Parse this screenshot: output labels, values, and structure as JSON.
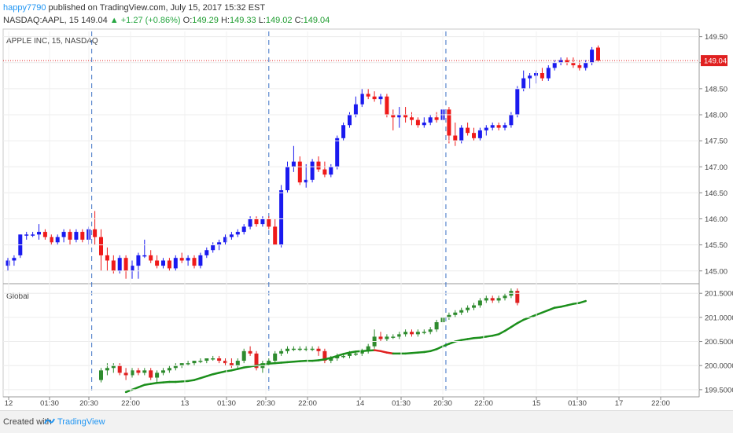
{
  "header": {
    "user": "happy7790",
    "published": "published on TradingView.com, July 15, 2017 15:32 EST",
    "symbol": "NASDAQ:AAPL, 15",
    "last": "149.04",
    "change": "+1.27 (+0.86%)",
    "o_label": "O:",
    "o_value": "149.29",
    "h_label": "H:",
    "h_value": "149.33",
    "l_label": "L:",
    "l_value": "149.02",
    "c_label": "C:",
    "c_value": "149.04"
  },
  "footer": {
    "created_with": "Created with",
    "brand": "TradingView"
  },
  "colors": {
    "up_candle": "#1a1aef",
    "down_candle": "#ef1a1a",
    "ind_up": "#2e8b2e",
    "ind_down": "#e02020",
    "ind_line": "#1b8f1b",
    "price_line": "#e02020",
    "session_line": "#3a6fc4"
  },
  "chart_data": [
    {
      "type": "candlestick",
      "pane_label": "APPLE INC, 15, NASDAQ",
      "ylim": [
        144.8,
        149.6
      ],
      "y_ticks": [
        "149.50",
        "149.00",
        "148.50",
        "148.00",
        "147.50",
        "147.00",
        "146.50",
        "146.00",
        "145.50",
        "145.00"
      ],
      "last_price_label": "149.04",
      "last_price": 149.04,
      "x_labels": [
        "12",
        "01:30",
        "20:30",
        "22:00",
        "13",
        "01:30",
        "20:30",
        "22:00",
        "14",
        "01:30",
        "20:30",
        "22:00",
        "15",
        "01:30",
        "17",
        "22:00"
      ],
      "session_breaks": [
        "20:30",
        "20:30",
        "20:30"
      ],
      "candles": [
        [
          145.1,
          145.25,
          145.0,
          145.2
        ],
        [
          145.2,
          145.3,
          145.1,
          145.25
        ],
        [
          145.3,
          145.7,
          145.25,
          145.7
        ],
        [
          145.7,
          145.75,
          145.6,
          145.7
        ],
        [
          145.7,
          145.75,
          145.65,
          145.7
        ],
        [
          145.7,
          145.9,
          145.6,
          145.75
        ],
        [
          145.75,
          145.8,
          145.6,
          145.65
        ],
        [
          145.65,
          145.7,
          145.5,
          145.55
        ],
        [
          145.55,
          145.7,
          145.5,
          145.65
        ],
        [
          145.65,
          145.8,
          145.55,
          145.75
        ],
        [
          145.75,
          145.8,
          145.5,
          145.6
        ],
        [
          145.6,
          145.8,
          145.55,
          145.75
        ],
        [
          145.75,
          145.8,
          145.55,
          145.6
        ],
        [
          145.6,
          145.85,
          145.5,
          145.8
        ],
        [
          145.8,
          146.15,
          145.5,
          145.65
        ],
        [
          145.65,
          145.8,
          145.0,
          145.3
        ],
        [
          145.3,
          145.45,
          145.0,
          145.2
        ],
        [
          145.2,
          145.3,
          144.95,
          145.0
        ],
        [
          145.0,
          145.3,
          144.95,
          145.25
        ],
        [
          145.25,
          145.3,
          144.85,
          145.0
        ],
        [
          145.0,
          145.2,
          144.85,
          145.1
        ],
        [
          145.1,
          145.35,
          144.85,
          145.3
        ],
        [
          145.3,
          145.6,
          145.25,
          145.3
        ],
        [
          145.3,
          145.4,
          145.15,
          145.2
        ],
        [
          145.2,
          145.3,
          145.05,
          145.1
        ],
        [
          145.1,
          145.25,
          145.05,
          145.2
        ],
        [
          145.2,
          145.25,
          145.0,
          145.05
        ],
        [
          145.05,
          145.3,
          145.0,
          145.25
        ],
        [
          145.25,
          145.35,
          145.15,
          145.2
        ],
        [
          145.2,
          145.3,
          145.1,
          145.25
        ],
        [
          145.25,
          145.3,
          145.05,
          145.1
        ],
        [
          145.1,
          145.35,
          145.05,
          145.3
        ],
        [
          145.3,
          145.45,
          145.25,
          145.4
        ],
        [
          145.4,
          145.55,
          145.35,
          145.5
        ],
        [
          145.5,
          145.6,
          145.4,
          145.55
        ],
        [
          145.55,
          145.7,
          145.5,
          145.65
        ],
        [
          145.65,
          145.75,
          145.6,
          145.7
        ],
        [
          145.7,
          145.8,
          145.65,
          145.75
        ],
        [
          145.75,
          145.9,
          145.7,
          145.85
        ],
        [
          145.85,
          146.05,
          145.8,
          146.0
        ],
        [
          146.0,
          146.05,
          145.85,
          145.9
        ],
        [
          145.9,
          146.05,
          145.85,
          146.0
        ],
        [
          146.0,
          146.05,
          145.8,
          145.85
        ],
        [
          145.85,
          146.0,
          145.5,
          145.5
        ],
        [
          145.5,
          146.65,
          145.45,
          146.55
        ],
        [
          146.55,
          147.1,
          146.5,
          147.0
        ],
        [
          147.0,
          147.4,
          146.9,
          147.1
        ],
        [
          147.1,
          147.2,
          146.65,
          146.7
        ],
        [
          146.7,
          147.05,
          146.6,
          146.75
        ],
        [
          146.75,
          147.15,
          146.7,
          147.1
        ],
        [
          147.1,
          147.2,
          146.9,
          146.95
        ],
        [
          146.95,
          147.1,
          146.8,
          146.85
        ],
        [
          146.85,
          147.05,
          146.8,
          147.0
        ],
        [
          147.0,
          147.6,
          146.95,
          147.55
        ],
        [
          147.55,
          147.85,
          147.5,
          147.8
        ],
        [
          147.8,
          148.05,
          147.75,
          148.0
        ],
        [
          148.0,
          148.35,
          147.95,
          148.2
        ],
        [
          148.2,
          148.5,
          148.15,
          148.4
        ],
        [
          148.4,
          148.5,
          148.3,
          148.35
        ],
        [
          148.35,
          148.45,
          148.25,
          148.3
        ],
        [
          148.3,
          148.4,
          148.2,
          148.35
        ],
        [
          148.35,
          148.4,
          147.95,
          148.0
        ],
        [
          148.0,
          148.1,
          147.7,
          147.95
        ],
        [
          147.95,
          148.15,
          147.75,
          148.0
        ],
        [
          148.0,
          148.15,
          147.85,
          147.95
        ],
        [
          147.95,
          148.05,
          147.8,
          147.9
        ],
        [
          147.9,
          147.95,
          147.75,
          147.8
        ],
        [
          147.8,
          147.95,
          147.75,
          147.85
        ],
        [
          147.85,
          148.0,
          147.8,
          147.95
        ],
        [
          147.95,
          148.05,
          147.85,
          147.9
        ],
        [
          147.9,
          148.15,
          147.8,
          148.1
        ],
        [
          148.1,
          148.15,
          147.45,
          147.6
        ],
        [
          147.6,
          147.85,
          147.4,
          147.5
        ],
        [
          147.5,
          147.8,
          147.45,
          147.75
        ],
        [
          147.75,
          147.85,
          147.6,
          147.65
        ],
        [
          147.65,
          147.75,
          147.5,
          147.55
        ],
        [
          147.55,
          147.75,
          147.5,
          147.7
        ],
        [
          147.7,
          147.8,
          147.6,
          147.75
        ],
        [
          147.75,
          147.85,
          147.7,
          147.8
        ],
        [
          147.8,
          147.85,
          147.7,
          147.75
        ],
        [
          147.75,
          147.85,
          147.7,
          147.8
        ],
        [
          147.8,
          148.05,
          147.75,
          148.0
        ],
        [
          148.0,
          148.55,
          147.95,
          148.5
        ],
        [
          148.5,
          148.85,
          148.45,
          148.7
        ],
        [
          148.7,
          148.8,
          148.5,
          148.75
        ],
        [
          148.75,
          148.85,
          148.6,
          148.8
        ],
        [
          148.8,
          148.9,
          148.65,
          148.7
        ],
        [
          148.7,
          148.95,
          148.65,
          148.9
        ],
        [
          148.9,
          149.05,
          148.85,
          149.0
        ],
        [
          149.0,
          149.1,
          148.95,
          149.05
        ],
        [
          149.05,
          149.1,
          148.95,
          149.0
        ],
        [
          149.0,
          149.1,
          148.9,
          148.95
        ],
        [
          148.95,
          149.05,
          148.85,
          148.9
        ],
        [
          148.9,
          149.05,
          148.85,
          149.0
        ],
        [
          149.0,
          149.3,
          148.95,
          149.25
        ],
        [
          149.29,
          149.33,
          149.02,
          149.04
        ]
      ]
    },
    {
      "type": "candlestick",
      "pane_label": "Global",
      "ylim": [
        199.4,
        201.65
      ],
      "y_ticks": [
        "201.5000",
        "201.0000",
        "200.5000",
        "200.0000",
        "199.5000"
      ],
      "start_index": 15,
      "candles": [
        [
          199.7,
          199.95,
          199.65,
          199.9
        ],
        [
          199.9,
          200.05,
          199.8,
          199.95
        ],
        [
          199.95,
          200.05,
          199.85,
          200.0
        ],
        [
          200.0,
          200.05,
          199.8,
          199.85
        ],
        [
          199.85,
          199.95,
          199.7,
          199.8
        ],
        [
          199.8,
          199.95,
          199.75,
          199.9
        ],
        [
          199.9,
          199.95,
          199.8,
          199.85
        ],
        [
          199.85,
          199.95,
          199.8,
          199.9
        ],
        [
          199.9,
          199.95,
          199.7,
          199.75
        ],
        [
          199.75,
          199.9,
          199.65,
          199.85
        ],
        [
          199.85,
          199.95,
          199.8,
          199.9
        ],
        [
          199.9,
          200.0,
          199.85,
          199.95
        ],
        [
          199.95,
          200.05,
          199.9,
          200.0
        ],
        [
          200.0,
          200.05,
          199.95,
          200.05
        ],
        [
          200.05,
          200.1,
          200.0,
          200.05
        ],
        [
          200.05,
          200.1,
          200.0,
          200.1
        ],
        [
          200.1,
          200.15,
          200.05,
          200.1
        ],
        [
          200.1,
          200.15,
          200.05,
          200.15
        ],
        [
          200.15,
          200.2,
          200.1,
          200.15
        ],
        [
          200.15,
          200.2,
          200.05,
          200.1
        ],
        [
          200.1,
          200.15,
          200.0,
          200.05
        ],
        [
          200.05,
          200.15,
          199.95,
          200.0
        ],
        [
          200.0,
          200.15,
          199.95,
          200.1
        ],
        [
          200.1,
          200.35,
          200.05,
          200.3
        ],
        [
          200.3,
          200.4,
          200.2,
          200.25
        ],
        [
          200.25,
          200.3,
          199.9,
          199.95
        ],
        [
          199.95,
          200.1,
          199.85,
          200.05
        ],
        [
          200.05,
          200.15,
          200.0,
          200.1
        ],
        [
          200.1,
          200.3,
          200.05,
          200.25
        ],
        [
          200.25,
          200.35,
          200.2,
          200.3
        ],
        [
          200.3,
          200.4,
          200.25,
          200.35
        ],
        [
          200.35,
          200.4,
          200.3,
          200.35
        ],
        [
          200.35,
          200.4,
          200.3,
          200.35
        ],
        [
          200.35,
          200.4,
          200.3,
          200.35
        ],
        [
          200.35,
          200.4,
          200.3,
          200.35
        ],
        [
          200.35,
          200.4,
          200.2,
          200.3
        ],
        [
          200.3,
          200.35,
          200.05,
          200.1
        ],
        [
          200.1,
          200.2,
          200.05,
          200.15
        ],
        [
          200.15,
          200.25,
          200.1,
          200.2
        ],
        [
          200.2,
          200.25,
          200.15,
          200.2
        ],
        [
          200.2,
          200.3,
          200.15,
          200.25
        ],
        [
          200.25,
          200.3,
          200.2,
          200.25
        ],
        [
          200.25,
          200.35,
          200.2,
          200.3
        ],
        [
          200.3,
          200.45,
          200.25,
          200.4
        ],
        [
          200.4,
          200.75,
          200.35,
          200.6
        ],
        [
          200.6,
          200.7,
          200.5,
          200.55
        ],
        [
          200.55,
          200.65,
          200.5,
          200.6
        ],
        [
          200.6,
          200.65,
          200.55,
          200.6
        ],
        [
          200.6,
          200.7,
          200.55,
          200.65
        ],
        [
          200.65,
          200.75,
          200.6,
          200.7
        ],
        [
          200.7,
          200.75,
          200.6,
          200.65
        ],
        [
          200.65,
          200.75,
          200.6,
          200.7
        ],
        [
          200.7,
          200.75,
          200.65,
          200.7
        ],
        [
          200.7,
          200.8,
          200.65,
          200.75
        ],
        [
          200.75,
          200.95,
          200.7,
          200.9
        ],
        [
          200.9,
          201.05,
          200.85,
          201.0
        ],
        [
          201.0,
          201.1,
          200.95,
          201.05
        ],
        [
          201.05,
          201.15,
          201.0,
          201.1
        ],
        [
          201.1,
          201.2,
          201.05,
          201.15
        ],
        [
          201.15,
          201.25,
          201.1,
          201.2
        ],
        [
          201.2,
          201.3,
          201.15,
          201.25
        ],
        [
          201.25,
          201.4,
          201.2,
          201.35
        ],
        [
          201.35,
          201.45,
          201.3,
          201.4
        ],
        [
          201.4,
          201.45,
          201.3,
          201.35
        ],
        [
          201.35,
          201.45,
          201.3,
          201.4
        ],
        [
          201.4,
          201.5,
          201.35,
          201.45
        ],
        [
          201.45,
          201.6,
          201.4,
          201.55
        ],
        [
          201.55,
          201.6,
          201.25,
          201.3
        ]
      ],
      "line": {
        "start_index": 19,
        "values": [
          199.45,
          199.5,
          199.55,
          199.6,
          199.62,
          199.64,
          199.65,
          199.66,
          199.66,
          199.67,
          199.68,
          199.7,
          199.74,
          199.78,
          199.82,
          199.85,
          199.88,
          199.9,
          199.93,
          199.96,
          199.98,
          200.0,
          200.02,
          200.04,
          200.05,
          200.06,
          200.07,
          200.08,
          200.09,
          200.1,
          200.1,
          200.11,
          200.13,
          200.16,
          200.2,
          200.24,
          200.27,
          200.29,
          200.3,
          200.31,
          200.32,
          200.3,
          200.27,
          200.25,
          200.25,
          200.25,
          200.26,
          200.27,
          200.28,
          200.3,
          200.34,
          200.4,
          200.45,
          200.5,
          200.53,
          200.55,
          200.57,
          200.58,
          200.6,
          200.62,
          200.65,
          200.72,
          200.8,
          200.88,
          200.95,
          201.0,
          201.05,
          201.1,
          201.15,
          201.2,
          201.22,
          201.25,
          201.28,
          201.3,
          201.34
        ]
      }
    }
  ]
}
